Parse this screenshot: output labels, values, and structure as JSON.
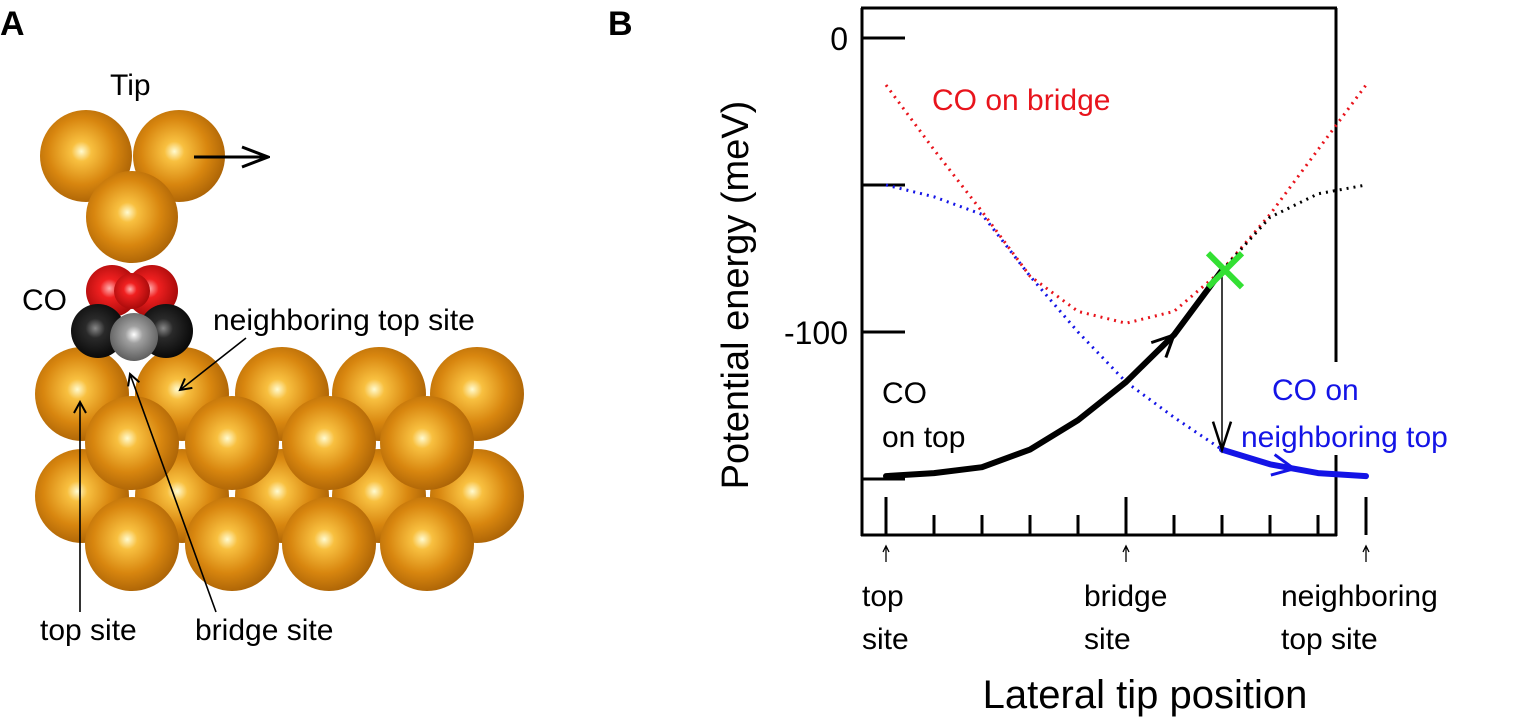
{
  "panel_a": {
    "panel_label": "A",
    "tip_label": "Tip",
    "co_label": "CO",
    "neighboring_top_site_label": "neighboring top site",
    "top_site_label": "top site",
    "bridge_site_label": "bridge site",
    "colors": {
      "copper": "#d8860f",
      "oxygen": "#e01818",
      "carbon": "#1a1a1a",
      "carbon_center": "#8a8a8a"
    }
  },
  "panel_b": {
    "panel_label": "B"
  },
  "chart_data": {
    "type": "line",
    "ylabel": "Potential energy (meV)",
    "xlabel": "Lateral tip position",
    "ylim": [
      -168,
      10
    ],
    "xlim": [
      0,
      1
    ],
    "y_ticks": [
      0,
      -50,
      -100,
      -150
    ],
    "y_tick_labels": [
      "0",
      "",
      "-100",
      ""
    ],
    "x_ticks": [
      0,
      0.1,
      0.2,
      0.3,
      0.4,
      0.5,
      0.6,
      0.7,
      0.8,
      0.9,
      1.0
    ],
    "x_tick_labels": [
      {
        "x": 0,
        "line1": "top",
        "line2": "site"
      },
      {
        "x": 0.5,
        "line1": "bridge",
        "line2": "site"
      },
      {
        "x": 1,
        "line1": "neighboring",
        "line2": "top site"
      }
    ],
    "grid": false,
    "series": [
      {
        "id": "bridge",
        "style": "dotted",
        "color": "#e8141c",
        "x": [
          0,
          0.1,
          0.2,
          0.3,
          0.4,
          0.5,
          0.6,
          0.7,
          0.8,
          0.9,
          1.0
        ],
        "y": [
          -16,
          -38,
          -59,
          -81,
          -93,
          -97,
          -93,
          -79,
          -60,
          -38,
          -16
        ]
      },
      {
        "id": "neighbor-dotted",
        "style": "dotted",
        "color": "#1414e6",
        "x": [
          0,
          0.1,
          0.2,
          0.3,
          0.4,
          0.5,
          0.6,
          0.7
        ],
        "y": [
          -50,
          -54,
          -60,
          -81,
          -100,
          -117,
          -129,
          -140
        ]
      },
      {
        "id": "top-dotted",
        "style": "dotted",
        "color": "#000000",
        "x": [
          0.7,
          0.8,
          0.9,
          1.0
        ],
        "y": [
          -79,
          -61,
          -53,
          -50
        ]
      },
      {
        "id": "top-path",
        "style": "solid",
        "color": "#000000",
        "arrow_at": 0.6,
        "x": [
          0,
          0.1,
          0.2,
          0.3,
          0.4,
          0.5,
          0.6,
          0.7
        ],
        "y": [
          -149,
          -148,
          -146,
          -140,
          -130,
          -117,
          -101,
          -79
        ]
      },
      {
        "id": "neighbor-path",
        "style": "solid",
        "color": "#1414e6",
        "arrow_at": 0.85,
        "x": [
          0.7,
          0.8,
          0.9,
          1.0
        ],
        "y": [
          -140,
          -145,
          -148,
          -149
        ]
      }
    ],
    "annotations": [
      {
        "text": "CO on bridge",
        "color": "#e8141c"
      },
      {
        "text": "CO",
        "text2": "on top",
        "color": "#000000"
      },
      {
        "text": "CO on",
        "text2": "neighboring top",
        "color": "#1414e6"
      }
    ],
    "crossing_marker": {
      "x": 0.7,
      "y": -79,
      "color": "#33e033",
      "symbol": "x"
    },
    "jump_arrow": {
      "x": 0.7,
      "from_y": -79,
      "to_y": -140
    }
  }
}
